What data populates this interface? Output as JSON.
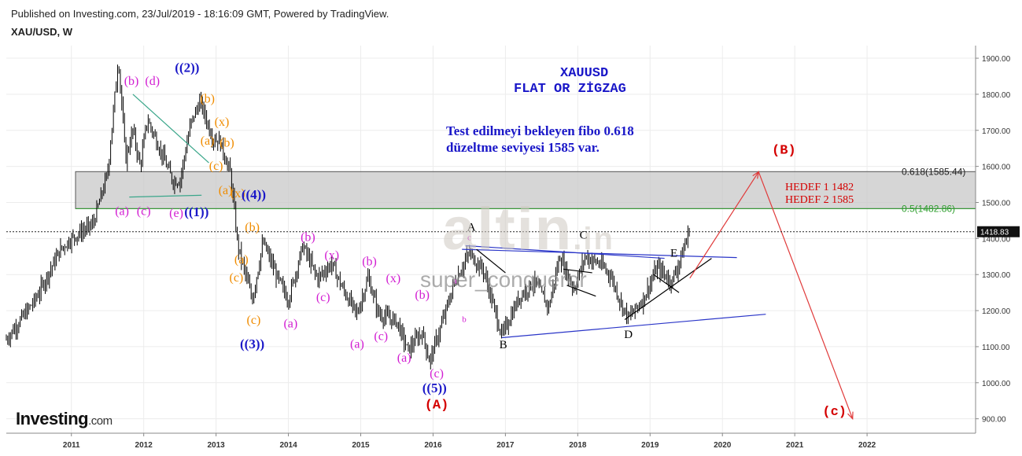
{
  "header": {
    "published": "Published on Investing.com, 23/Jul/2019 - 18:16:09 GMT, Powered by TradingView.",
    "symbol": "XAU/USD, W"
  },
  "branding": {
    "logo_main": "Investing",
    "logo_suffix": ".com",
    "watermark_main": "altin",
    "watermark_suffix": ".in",
    "watermark_user": "super_conqueror"
  },
  "annotations": {
    "title_line1": "XAUUSD",
    "title_line2": "FLAT OR ZİGZAG",
    "note_line1": "Test edilmeyi bekleyen fibo 0.618",
    "note_line2": "düzeltme seviyesi 1585 var.",
    "target_line1": "HEDEF 1   1482",
    "target_line2": "HEDEF 2   1585"
  },
  "colors": {
    "candle": "#000000",
    "price_line": "#000000",
    "trend_blue": "#2a35c8",
    "trend_green": "#3aa68a",
    "fib_zone": "#9e9e9e",
    "fib_green": "#2e9e2e",
    "forecast_red": "#e03a3a",
    "wave_magenta": "#d21ed2",
    "wave_orange": "#f08c00",
    "wave_blue": "#1a17c8",
    "wave_red": "#d40000",
    "wave_black": "#000000"
  },
  "chart_data": {
    "type": "candlestick",
    "title": "XAU/USD, W",
    "ylim": [
      860,
      1935
    ],
    "xlim": [
      2010.1,
      2023.5
    ],
    "y_ticks": [
      900,
      1000,
      1100,
      1200,
      1300,
      1400,
      1500,
      1600,
      1700,
      1800,
      1900
    ],
    "y_tick_labels": [
      "900.00",
      "1000.00",
      "1100.00",
      "1200.00",
      "1300.00",
      "1400.00",
      "1500.00",
      "1600.00",
      "1700.00",
      "1800.00",
      "1900.00"
    ],
    "x_ticks": [
      2011,
      2012,
      2013,
      2014,
      2015,
      2016,
      2017,
      2018,
      2019,
      2020,
      2021,
      2022
    ],
    "x_tick_labels": [
      "2011",
      "2012",
      "2013",
      "2014",
      "2015",
      "2016",
      "2017",
      "2018",
      "2019",
      "2020",
      "2021",
      "2022"
    ],
    "grid": true,
    "last_price": 1418.83,
    "last_price_label": "1418.83",
    "price_path": [
      [
        2010.1,
        1120
      ],
      [
        2010.5,
        1230
      ],
      [
        2010.85,
        1370
      ],
      [
        2011.0,
        1400
      ],
      [
        2011.3,
        1440
      ],
      [
        2011.5,
        1580
      ],
      [
        2011.65,
        1900
      ],
      [
        2011.75,
        1620
      ],
      [
        2011.85,
        1700
      ],
      [
        2011.95,
        1600
      ],
      [
        2012.05,
        1730
      ],
      [
        2012.2,
        1660
      ],
      [
        2012.4,
        1560
      ],
      [
        2012.5,
        1560
      ],
      [
        2012.65,
        1720
      ],
      [
        2012.78,
        1780
      ],
      [
        2012.95,
        1680
      ],
      [
        2013.05,
        1670
      ],
      [
        2013.2,
        1580
      ],
      [
        2013.3,
        1380
      ],
      [
        2013.5,
        1230
      ],
      [
        2013.65,
        1390
      ],
      [
        2013.85,
        1290
      ],
      [
        2014.0,
        1230
      ],
      [
        2014.2,
        1380
      ],
      [
        2014.4,
        1290
      ],
      [
        2014.6,
        1330
      ],
      [
        2014.75,
        1260
      ],
      [
        2014.95,
        1190
      ],
      [
        2015.1,
        1290
      ],
      [
        2015.25,
        1190
      ],
      [
        2015.5,
        1170
      ],
      [
        2015.65,
        1090
      ],
      [
        2015.85,
        1140
      ],
      [
        2015.95,
        1060
      ],
      [
        2016.1,
        1150
      ],
      [
        2016.3,
        1280
      ],
      [
        2016.5,
        1360
      ],
      [
        2016.7,
        1310
      ],
      [
        2016.95,
        1130
      ],
      [
        2017.2,
        1240
      ],
      [
        2017.4,
        1280
      ],
      [
        2017.6,
        1210
      ],
      [
        2017.75,
        1350
      ],
      [
        2017.95,
        1260
      ],
      [
        2018.1,
        1350
      ],
      [
        2018.3,
        1330
      ],
      [
        2018.45,
        1300
      ],
      [
        2018.6,
        1220
      ],
      [
        2018.7,
        1180
      ],
      [
        2018.9,
        1230
      ],
      [
        2019.1,
        1320
      ],
      [
        2019.3,
        1280
      ],
      [
        2019.45,
        1360
      ],
      [
        2019.55,
        1430
      ]
    ],
    "fib_levels": [
      {
        "ratio": 0.618,
        "value": 1585.44,
        "label": "0.618(1585.44)"
      },
      {
        "ratio": 0.5,
        "value": 1482.86,
        "label": "0.5(1482.86)"
      }
    ],
    "trendlines": [
      {
        "color": "blue",
        "points": [
          [
            2016.45,
            1380
          ],
          [
            2019.2,
            1345
          ]
        ]
      },
      {
        "color": "blue",
        "points": [
          [
            2016.4,
            1370
          ],
          [
            2020.2,
            1347
          ]
        ]
      },
      {
        "color": "blue",
        "points": [
          [
            2016.95,
            1125
          ],
          [
            2020.6,
            1190
          ]
        ]
      },
      {
        "color": "black",
        "points": [
          [
            2016.6,
            1370
          ],
          [
            2017.0,
            1305
          ]
        ]
      },
      {
        "color": "black",
        "points": [
          [
            2017.8,
            1315
          ],
          [
            2018.2,
            1305
          ]
        ]
      },
      {
        "color": "black",
        "points": [
          [
            2017.85,
            1270
          ],
          [
            2018.25,
            1240
          ]
        ]
      },
      {
        "color": "black",
        "points": [
          [
            2018.65,
            1175
          ],
          [
            2019.85,
            1345
          ]
        ]
      },
      {
        "color": "black",
        "points": [
          [
            2019.05,
            1300
          ],
          [
            2019.4,
            1250
          ]
        ]
      },
      {
        "color": "green",
        "points": [
          [
            2011.8,
            1515
          ],
          [
            2012.8,
            1520
          ]
        ]
      },
      {
        "color": "green",
        "points": [
          [
            2011.85,
            1800
          ],
          [
            2012.9,
            1610
          ]
        ]
      }
    ],
    "forecast_path": [
      [
        2019.55,
        1290
      ],
      [
        2020.5,
        1585
      ],
      [
        2021.8,
        900
      ]
    ],
    "wave_labels": [
      {
        "text": "(b)",
        "x": 2011.83,
        "y": 1826,
        "color": "magenta"
      },
      {
        "text": "(d)",
        "x": 2012.12,
        "y": 1826,
        "color": "magenta"
      },
      {
        "text": "((2))",
        "x": 2012.6,
        "y": 1862,
        "color": "blue"
      },
      {
        "text": "(b)",
        "x": 2012.88,
        "y": 1777,
        "color": "orange"
      },
      {
        "text": "(x)",
        "x": 2013.08,
        "y": 1713,
        "color": "orange"
      },
      {
        "text": "(a)",
        "x": 2012.88,
        "y": 1660,
        "color": "orange"
      },
      {
        "text": "(b)",
        "x": 2013.15,
        "y": 1655,
        "color": "orange"
      },
      {
        "text": "(c)",
        "x": 2013.0,
        "y": 1590,
        "color": "orange"
      },
      {
        "text": "(a)",
        "x": 2013.13,
        "y": 1523,
        "color": "orange"
      },
      {
        "text": "(x)",
        "x": 2013.3,
        "y": 1514,
        "color": "orange"
      },
      {
        "text": "((4))",
        "x": 2013.52,
        "y": 1510,
        "color": "blue"
      },
      {
        "text": "(a)",
        "x": 2011.7,
        "y": 1465,
        "color": "magenta"
      },
      {
        "text": "(c)",
        "x": 2012.0,
        "y": 1465,
        "color": "magenta"
      },
      {
        "text": "(e)",
        "x": 2012.45,
        "y": 1460,
        "color": "magenta"
      },
      {
        "text": "((1))",
        "x": 2012.73,
        "y": 1462,
        "color": "blue"
      },
      {
        "text": "(b)",
        "x": 2013.5,
        "y": 1420,
        "color": "orange"
      },
      {
        "text": "(b)",
        "x": 2014.27,
        "y": 1393,
        "color": "magenta"
      },
      {
        "text": "(x)",
        "x": 2014.6,
        "y": 1343,
        "color": "magenta"
      },
      {
        "text": "(a)",
        "x": 2013.35,
        "y": 1331,
        "color": "orange"
      },
      {
        "text": "(c)",
        "x": 2013.28,
        "y": 1281,
        "color": "orange"
      },
      {
        "text": "(b)",
        "x": 2015.12,
        "y": 1326,
        "color": "magenta"
      },
      {
        "text": "(x)",
        "x": 2015.45,
        "y": 1279,
        "color": "magenta"
      },
      {
        "text": "(c)",
        "x": 2014.48,
        "y": 1226,
        "color": "magenta"
      },
      {
        "text": "(b)",
        "x": 2015.85,
        "y": 1233,
        "color": "magenta"
      },
      {
        "text": "(c)",
        "x": 2013.52,
        "y": 1163,
        "color": "orange"
      },
      {
        "text": "(a)",
        "x": 2014.03,
        "y": 1153,
        "color": "magenta"
      },
      {
        "text": "((3))",
        "x": 2013.5,
        "y": 1095,
        "color": "blue"
      },
      {
        "text": "(a)",
        "x": 2014.95,
        "y": 1097,
        "color": "magenta"
      },
      {
        "text": "(c)",
        "x": 2015.28,
        "y": 1118,
        "color": "magenta"
      },
      {
        "text": "(a)",
        "x": 2015.6,
        "y": 1058,
        "color": "magenta"
      },
      {
        "text": "(c)",
        "x": 2016.05,
        "y": 1015,
        "color": "magenta"
      },
      {
        "text": "((5))",
        "x": 2016.02,
        "y": 973,
        "color": "blue"
      },
      {
        "text": "(A)",
        "x": 2016.05,
        "y": 929,
        "color": "red"
      },
      {
        "text": "A",
        "x": 2016.53,
        "y": 1422,
        "color": "black"
      },
      {
        "text": "c",
        "x": 2016.5,
        "y": 1395,
        "color": "magenta"
      },
      {
        "text": "a",
        "x": 2016.3,
        "y": 1275,
        "color": "magenta"
      },
      {
        "text": "b",
        "x": 2016.43,
        "y": 1168,
        "color": "magenta"
      },
      {
        "text": "B",
        "x": 2016.97,
        "y": 1095,
        "color": "black"
      },
      {
        "text": "C",
        "x": 2018.08,
        "y": 1400,
        "color": "black"
      },
      {
        "text": "D",
        "x": 2018.7,
        "y": 1124,
        "color": "black"
      },
      {
        "text": "E",
        "x": 2019.33,
        "y": 1350,
        "color": "black"
      },
      {
        "text": "(B)",
        "x": 2020.85,
        "y": 1635,
        "color": "red"
      },
      {
        "text": "(c)",
        "x": 2021.55,
        "y": 910,
        "color": "red"
      }
    ]
  }
}
